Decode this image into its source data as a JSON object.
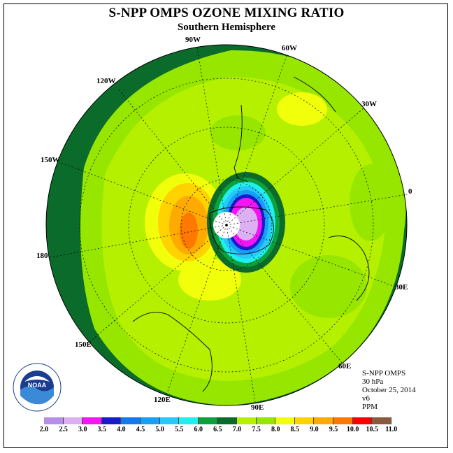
{
  "title": "S-NPP OMPS OZONE MIXING RATIO",
  "subtitle": "Southern Hemisphere",
  "meridian_labels": {
    "m90w": "90W",
    "m60w": "60W",
    "m120w": "120W",
    "m30w": "30W",
    "m150w": "150W",
    "m0": "0",
    "m180": "180",
    "m30e": "30E",
    "m150e": "150E",
    "m60e": "60E",
    "m120e": "120E",
    "m90e": "90E"
  },
  "info": {
    "instrument": "S-NPP OMPS",
    "level": "30 hPa",
    "date": "October 25, 2014",
    "version": "v6",
    "units": "PPM"
  },
  "logo": {
    "text": "NOAA"
  },
  "legend": {
    "ticks": [
      "2.0",
      "2.5",
      "3.0",
      "3.5",
      "4.0",
      "4.5",
      "5.0",
      "5.5",
      "6.0",
      "6.5",
      "7.0",
      "7.5",
      "8.0",
      "8.5",
      "9.0",
      "9.5",
      "10.0",
      "10.5",
      "11.0"
    ],
    "colors": [
      "#b98ee8",
      "#dcb0f2",
      "#f414f4",
      "#1a1acc",
      "#1478f0",
      "#14a0f4",
      "#28c8f8",
      "#1ef0ee",
      "#0da03c",
      "#0a6b2a",
      "#b4f000",
      "#96e600",
      "#f2ff0a",
      "#ffd200",
      "#ffaa00",
      "#ff7800",
      "#ff0000",
      "#8b5a3c"
    ]
  }
}
